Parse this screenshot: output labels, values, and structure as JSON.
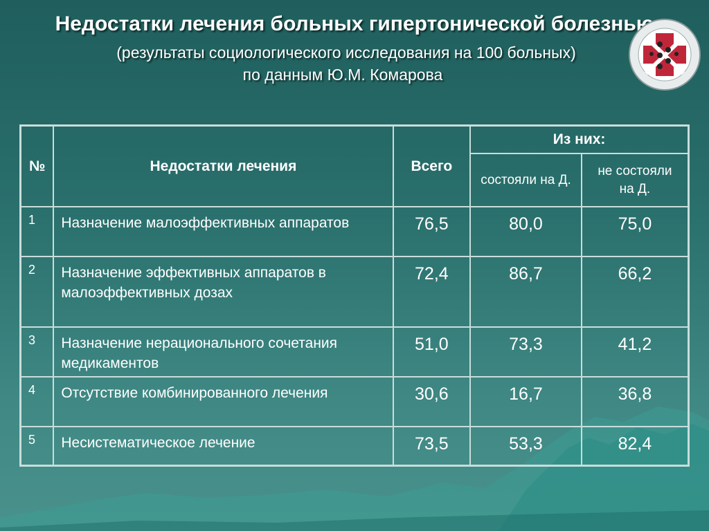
{
  "header": {
    "title": "Недостатки лечения больных гипертонической болезнью",
    "subtitle_line1": "(результаты социологического исследования на 100 больных)",
    "subtitle_line2": "по данным Ю.М. Комарова"
  },
  "table": {
    "col_num": "№",
    "col_name": "Недостатки лечения",
    "col_total": "Всего",
    "col_group": "Из них:",
    "col_sub1": "состояли на Д.",
    "col_sub2": "не состояли на Д.",
    "rows": [
      {
        "num": "1",
        "name": "Назначение малоэффективных аппаратов",
        "total": "76,5",
        "sub1": "80,0",
        "sub2": "75,0"
      },
      {
        "num": "2",
        "name": "Назначение эффективных аппаратов в малоэффективных дозах",
        "total": "72,4",
        "sub1": "86,7",
        "sub2": "66,2"
      },
      {
        "num": "3",
        "name": "Назначение нерационального сочетания медикаментов",
        "total": "51,0",
        "sub1": "73,3",
        "sub2": "41,2"
      },
      {
        "num": "4",
        "name": "Отсутствие комбинированного лечения",
        "total": "30,6",
        "sub1": "16,7",
        "sub2": "36,8"
      },
      {
        "num": "5",
        "name": "Несистематическое лечение",
        "total": "73,5",
        "sub1": "53,3",
        "sub2": "82,4"
      }
    ]
  },
  "colors": {
    "background": "#2a706d",
    "grid": "#c9dedb",
    "logo_red": "#c0263a"
  }
}
